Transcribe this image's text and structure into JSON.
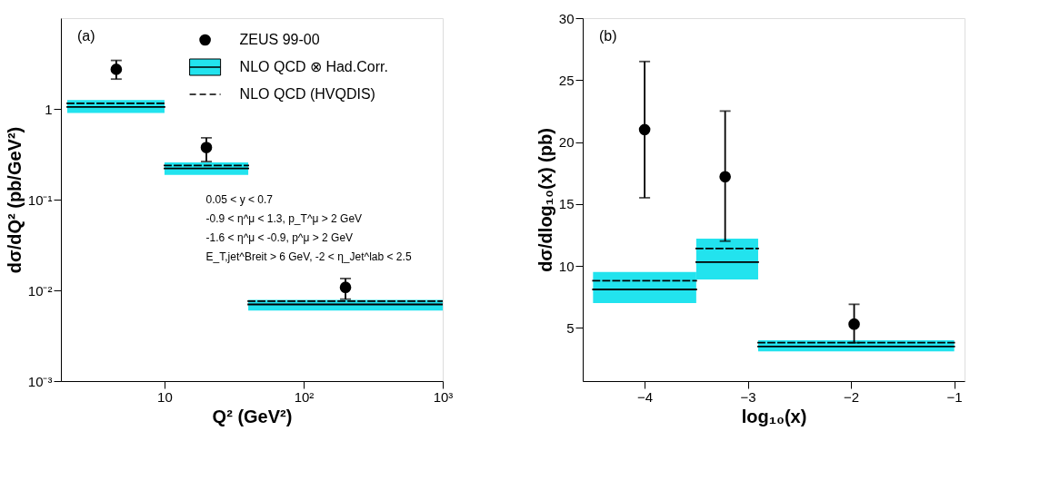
{
  "chart_data": [
    {
      "type": "scatter",
      "xlabel": "Q² (GeV²)",
      "ylabel": "dσ/dQ² (pb/GeV²)",
      "log": "xy",
      "grid": false,
      "legend": "top right",
      "xlim": [
        1.8,
        1000
      ],
      "ylim": [
        0.001,
        10
      ],
      "xticks": [
        10,
        {
          "value": 100,
          "label": "10²"
        },
        {
          "value": 1000,
          "label": "10³"
        }
      ],
      "yticks": [
        {
          "value": 0.001,
          "label": "10⁻³"
        },
        {
          "value": 0.01,
          "label": "10⁻²"
        },
        {
          "value": 0.1,
          "label": "10⁻¹"
        },
        1
      ],
      "annotations": [
        "(a)",
        "0.05 < y < 0.7",
        "-0.9 < η^μ < 1.3,  p_T^μ > 2 GeV",
        "-1.6 < η^μ < -0.9,  p^μ > 2 GeV",
        "E_T,jet^Breit > 6 GeV, -2 < η_Jet^lab < 2.5"
      ],
      "series": [
        {
          "name": "ZEUS 99-00",
          "type": "scatter",
          "marker": "circle",
          "color": "#000000",
          "x": [
            4.5,
            20,
            200
          ],
          "values": [
            2.73,
            0.375,
            0.0108
          ],
          "errors": [
            [
              2.13,
              3.42
            ],
            [
              0.263,
              0.48
            ],
            [
              0.008,
              0.0135
            ]
          ]
        },
        {
          "name": "NLO QCD ⊗ Had.Corr.",
          "type": "line",
          "line_style": "solid",
          "color": "#000000",
          "x": [
            2,
            10
          ],
          "values": [
            1.05,
            1.05
          ],
          "lower": [
            0.9,
            0.9
          ],
          "upper": [
            1.25,
            1.25
          ]
        },
        {
          "name": "NLO QCD (HVQDIS)",
          "type": "line",
          "line_style": "dashed",
          "color": "#000000",
          "x": [
            2,
            10
          ],
          "values": [
            1.15,
            1.15
          ]
        },
        {
          "type": "line",
          "line_style": "solid",
          "color": "#000000",
          "x": [
            10,
            40
          ],
          "values": [
            0.221,
            0.221
          ],
          "lower": [
            0.187,
            0.187
          ],
          "upper": [
            0.257,
            0.257
          ]
        },
        {
          "type": "line",
          "line_style": "dashed",
          "color": "#000000",
          "x": [
            10,
            40
          ],
          "values": [
            0.238,
            0.238
          ]
        },
        {
          "type": "line",
          "line_style": "solid",
          "color": "#000000",
          "x": [
            40,
            1000
          ],
          "values": [
            0.007,
            0.007
          ],
          "lower": [
            0.006,
            0.006
          ],
          "upper": [
            0.00785,
            0.00785
          ]
        },
        {
          "type": "line",
          "line_style": "dashed",
          "color": "#000000",
          "x": [
            40,
            1000
          ],
          "values": [
            0.0076,
            0.0076
          ]
        }
      ]
    },
    {
      "type": "scatter",
      "xlabel": "log₁₀(x)",
      "ylabel": "dσ/dlog₁₀(x) (pb)",
      "grid": false,
      "xlim": [
        -4.6,
        -0.9
      ],
      "ylim": [
        0.7,
        30
      ],
      "xticks": [
        -4,
        -3,
        -2,
        -1
      ],
      "yticks": [
        5,
        10,
        15,
        20,
        25,
        30
      ],
      "annotations": [
        "(b)"
      ],
      "series": [
        {
          "type": "scatter",
          "marker": "circle",
          "color": "#000000",
          "x": [
            -4,
            -3.22,
            -1.97
          ],
          "values": [
            21.0,
            17.2,
            5.3
          ],
          "errors": [
            [
              15.5,
              26.5
            ],
            [
              12.0,
              22.5
            ],
            [
              3.8,
              6.9
            ]
          ]
        },
        {
          "type": "line",
          "line_style": "solid",
          "color": "#000000",
          "x": [
            -4.5,
            -3.5
          ],
          "values": [
            8.1,
            8.1
          ],
          "lower": [
            7.0,
            7.0
          ],
          "upper": [
            9.5,
            9.5
          ]
        },
        {
          "type": "line",
          "line_style": "dashed",
          "color": "#000000",
          "x": [
            -4.5,
            -3.5
          ],
          "values": [
            8.8,
            8.8
          ]
        },
        {
          "type": "line",
          "line_style": "solid",
          "color": "#000000",
          "x": [
            -3.5,
            -2.9
          ],
          "values": [
            10.3,
            10.3
          ],
          "lower": [
            8.9,
            8.9
          ],
          "upper": [
            12.2,
            12.2
          ]
        },
        {
          "type": "line",
          "line_style": "dashed",
          "color": "#000000",
          "x": [
            -3.5,
            -2.9
          ],
          "values": [
            11.4,
            11.4
          ]
        },
        {
          "type": "line",
          "line_style": "solid",
          "color": "#000000",
          "x": [
            -2.9,
            -1
          ],
          "values": [
            3.5,
            3.5
          ],
          "lower": [
            3.1,
            3.1
          ],
          "upper": [
            4.0,
            4.0
          ]
        },
        {
          "type": "line",
          "line_style": "dashed",
          "color": "#000000",
          "x": [
            -2.9,
            -1
          ],
          "values": [
            3.8,
            3.8
          ]
        }
      ]
    }
  ]
}
